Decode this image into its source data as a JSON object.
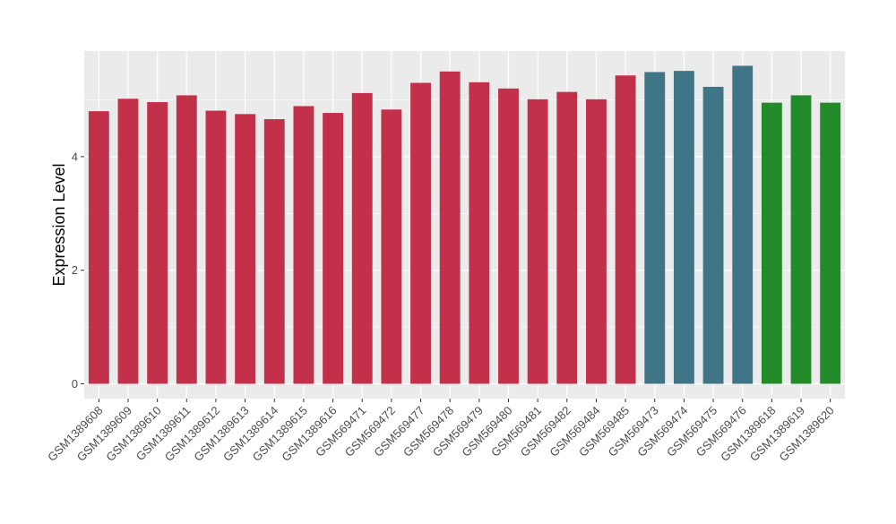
{
  "chart_data": {
    "type": "bar",
    "title": "",
    "xlabel": "",
    "ylabel": "Expression Level",
    "ylim": [
      0,
      5.85
    ],
    "yticks": [
      0,
      2,
      4
    ],
    "ytick_labels": [
      "0",
      "2",
      "4"
    ],
    "grid": true,
    "legend": "none",
    "categories": [
      "GSM1389608",
      "GSM1389609",
      "GSM1389610",
      "GSM1389611",
      "GSM1389612",
      "GSM1389613",
      "GSM1389614",
      "GSM1389615",
      "GSM1389616",
      "GSM569471",
      "GSM569472",
      "GSM569477",
      "GSM569478",
      "GSM569479",
      "GSM569480",
      "GSM569481",
      "GSM569482",
      "GSM569484",
      "GSM569485",
      "GSM569473",
      "GSM569474",
      "GSM569475",
      "GSM569476",
      "GSM1389618",
      "GSM1389619",
      "GSM1389620"
    ],
    "values": [
      4.8,
      5.02,
      4.96,
      5.08,
      4.81,
      4.75,
      4.66,
      4.89,
      4.77,
      5.12,
      4.83,
      5.3,
      5.5,
      5.31,
      5.2,
      5.01,
      5.14,
      5.01,
      5.43,
      5.49,
      5.51,
      5.23,
      5.6,
      4.95,
      5.08,
      4.95
    ],
    "bar_colors": [
      "#C3304A",
      "#C3304A",
      "#C3304A",
      "#C3304A",
      "#C3304A",
      "#C3304A",
      "#C3304A",
      "#C3304A",
      "#C3304A",
      "#C3304A",
      "#C3304A",
      "#C3304A",
      "#C3304A",
      "#C3304A",
      "#C3304A",
      "#C3304A",
      "#C3304A",
      "#C3304A",
      "#C3304A",
      "#3F7587",
      "#3F7587",
      "#3F7587",
      "#3F7587",
      "#238B2A",
      "#238B2A",
      "#238B2A"
    ],
    "panel_background": "#EBEBEB",
    "grid_color": "#FFFFFF"
  }
}
